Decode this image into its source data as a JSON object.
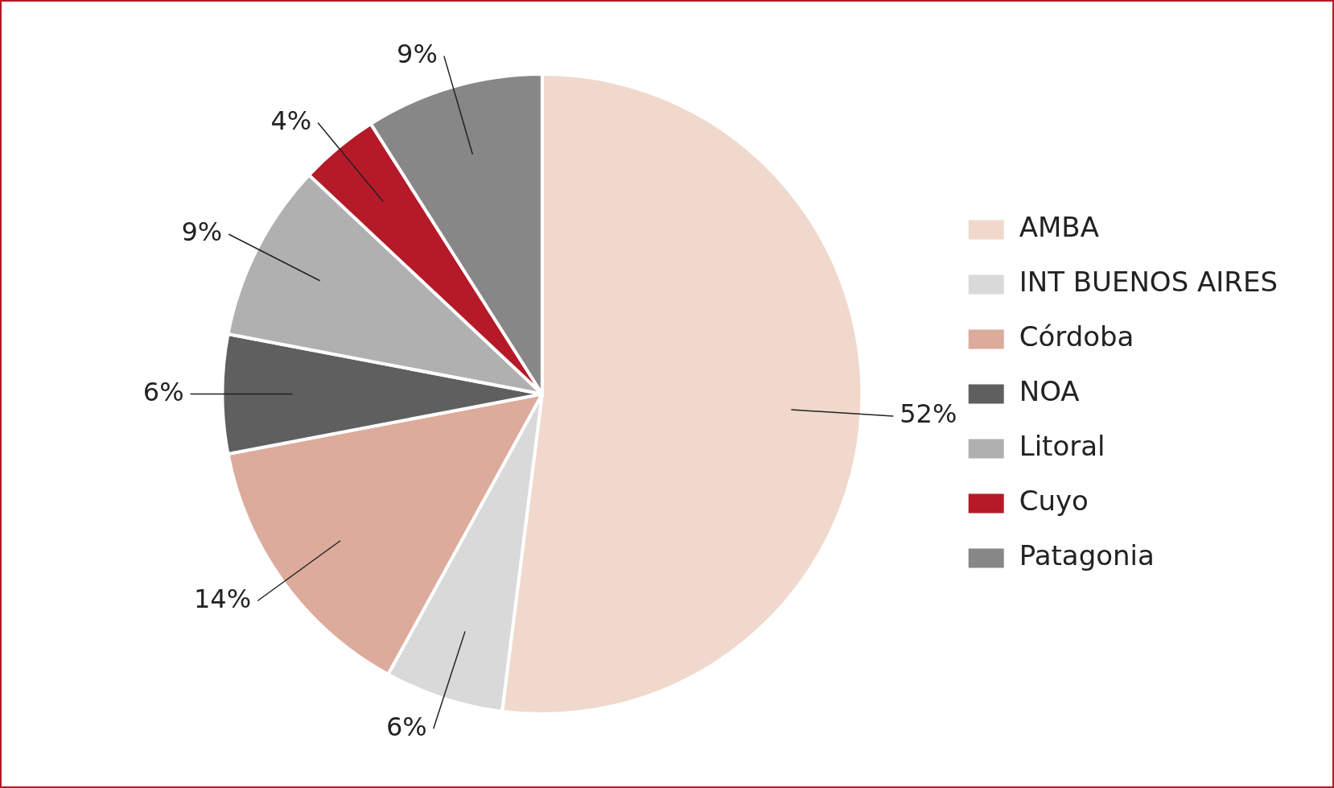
{
  "chart_data": {
    "type": "pie",
    "categories": [
      "AMBA",
      "INT BUENOS AIRES",
      "Córdoba",
      "NOA",
      "Litoral",
      "Cuyo",
      "Patagonia"
    ],
    "values": [
      52,
      6,
      14,
      6,
      9,
      4,
      9
    ],
    "colors": [
      "#f0d8cd",
      "#d9d9d9",
      "#dcab9b",
      "#5f5f5f",
      "#b0b0b0",
      "#b51a28",
      "#878787"
    ],
    "value_labels": [
      "52%",
      "6%",
      "14%",
      "6%",
      "9%",
      "4%",
      "9%"
    ],
    "legend": "right"
  }
}
